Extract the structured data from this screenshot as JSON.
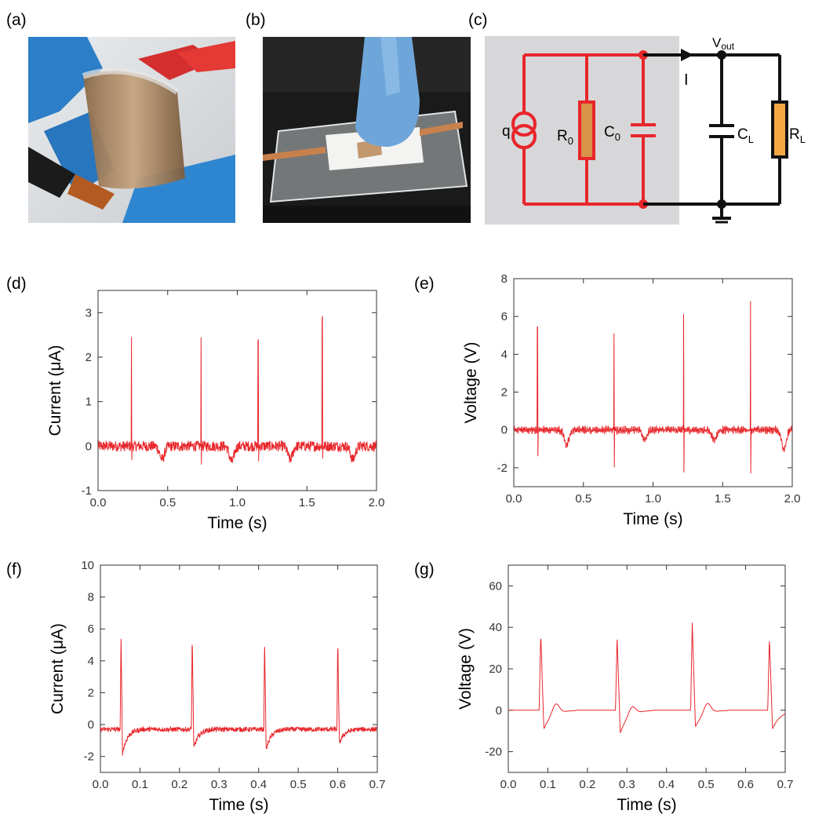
{
  "panels": {
    "a": {
      "label": "(a)"
    },
    "b": {
      "label": "(b)"
    },
    "c": {
      "label": "(c)"
    },
    "d": {
      "label": "(d)"
    },
    "e": {
      "label": "(e)"
    },
    "f": {
      "label": "(f)"
    },
    "g": {
      "label": "(g)"
    }
  },
  "circuit": {
    "source_label": "q",
    "r0_label": "R",
    "r0_sub": "0",
    "c0_label": "C",
    "c0_sub": "0",
    "current_label": "I",
    "vout_label": "V",
    "vout_sub": "out",
    "cl_label": "C",
    "cl_sub": "L",
    "rl_label": "R",
    "rl_sub": "L",
    "colors": {
      "device": "#e8262b",
      "external": "#111111",
      "background": "#d7d7d9",
      "resistor_fill": "#d9924a"
    }
  },
  "chart_data": [
    {
      "id": "d",
      "type": "line",
      "xlabel": "Time (s)",
      "ylabel": "Current (μA)",
      "xlim": [
        0.0,
        2.0
      ],
      "ylim": [
        -1,
        3.5
      ],
      "xticks": [
        "0.0",
        "0.5",
        "1.0",
        "1.5",
        "2.0"
      ],
      "yticks": [
        "-1",
        "0",
        "1",
        "2",
        "3"
      ],
      "color": "#e8262b",
      "noise": 0.12,
      "baseline": 0,
      "spikes": [
        {
          "x": 0.24,
          "peak": 2.5,
          "trough": -0.4
        },
        {
          "x": 0.74,
          "peak": 2.45,
          "trough": -0.3
        },
        {
          "x": 1.15,
          "peak": 2.3,
          "trough": -0.3
        },
        {
          "x": 1.61,
          "peak": 2.9,
          "trough": -0.3
        }
      ],
      "dips": [
        {
          "x": 0.46,
          "depth": -0.3
        },
        {
          "x": 0.96,
          "depth": -0.35
        },
        {
          "x": 1.38,
          "depth": -0.3
        },
        {
          "x": 1.83,
          "depth": -0.3
        }
      ]
    },
    {
      "id": "e",
      "type": "line",
      "xlabel": "Time (s)",
      "ylabel": "Voltage (V)",
      "xlim": [
        0.0,
        2.0
      ],
      "ylim": [
        -3,
        8
      ],
      "xticks": [
        "0.0",
        "0.5",
        "1.0",
        "1.5",
        "2.0"
      ],
      "yticks": [
        "-2",
        "0",
        "2",
        "4",
        "6",
        "8"
      ],
      "color": "#e8262b",
      "noise": 0.12,
      "baseline": 0,
      "spikes": [
        {
          "x": 0.17,
          "peak": 5.3,
          "trough": -1.4
        },
        {
          "x": 0.72,
          "peak": 5.3,
          "trough": -1.9
        },
        {
          "x": 1.22,
          "peak": 6.2,
          "trough": -2.3
        },
        {
          "x": 1.7,
          "peak": 6.8,
          "trough": -2.3
        }
      ],
      "dips": [
        {
          "x": 0.38,
          "depth": -0.8
        },
        {
          "x": 0.94,
          "depth": -0.5
        },
        {
          "x": 1.44,
          "depth": -0.5
        },
        {
          "x": 1.94,
          "depth": -1.0
        }
      ]
    },
    {
      "id": "f",
      "type": "line",
      "xlabel": "Time (s)",
      "ylabel": "Current (μA)",
      "xlim": [
        0.0,
        0.7
      ],
      "ylim": [
        -3,
        10
      ],
      "xticks": [
        "0.0",
        "0.1",
        "0.2",
        "0.3",
        "0.4",
        "0.5",
        "0.6",
        "0.7"
      ],
      "yticks": [
        "-2",
        "0",
        "2",
        "4",
        "6",
        "8",
        "10"
      ],
      "color": "#e8262b",
      "noise": 0.15,
      "baseline": -0.3,
      "spikes": [
        {
          "x": 0.052,
          "peak": 5.8,
          "trough": -1.5
        },
        {
          "x": 0.232,
          "peak": 6.0,
          "trough": -1.2
        },
        {
          "x": 0.415,
          "peak": 5.9,
          "trough": -1.3
        },
        {
          "x": 0.6,
          "peak": 5.7,
          "trough": -0.9
        }
      ],
      "dips": []
    },
    {
      "id": "g",
      "type": "line",
      "xlabel": "Time (s)",
      "ylabel": "Voltage (V)",
      "xlim": [
        0.0,
        0.7
      ],
      "ylim": [
        -30,
        70
      ],
      "xticks": [
        "0.0",
        "0.1",
        "0.2",
        "0.3",
        "0.4",
        "0.5",
        "0.6",
        "0.7"
      ],
      "yticks": [
        "-20",
        "0",
        "20",
        "40",
        "60"
      ],
      "color": "#e8262b",
      "noise": 0,
      "baseline": 0,
      "spikes": [
        {
          "x": 0.082,
          "peak": 37,
          "trough": -9,
          "bump": 5
        },
        {
          "x": 0.275,
          "peak": 36,
          "trough": -11,
          "bump": 4
        },
        {
          "x": 0.465,
          "peak": 43,
          "trough": -8,
          "bump": 5
        },
        {
          "x": 0.66,
          "peak": 35,
          "trough": -9,
          "bump": 0
        }
      ],
      "dips": []
    }
  ]
}
